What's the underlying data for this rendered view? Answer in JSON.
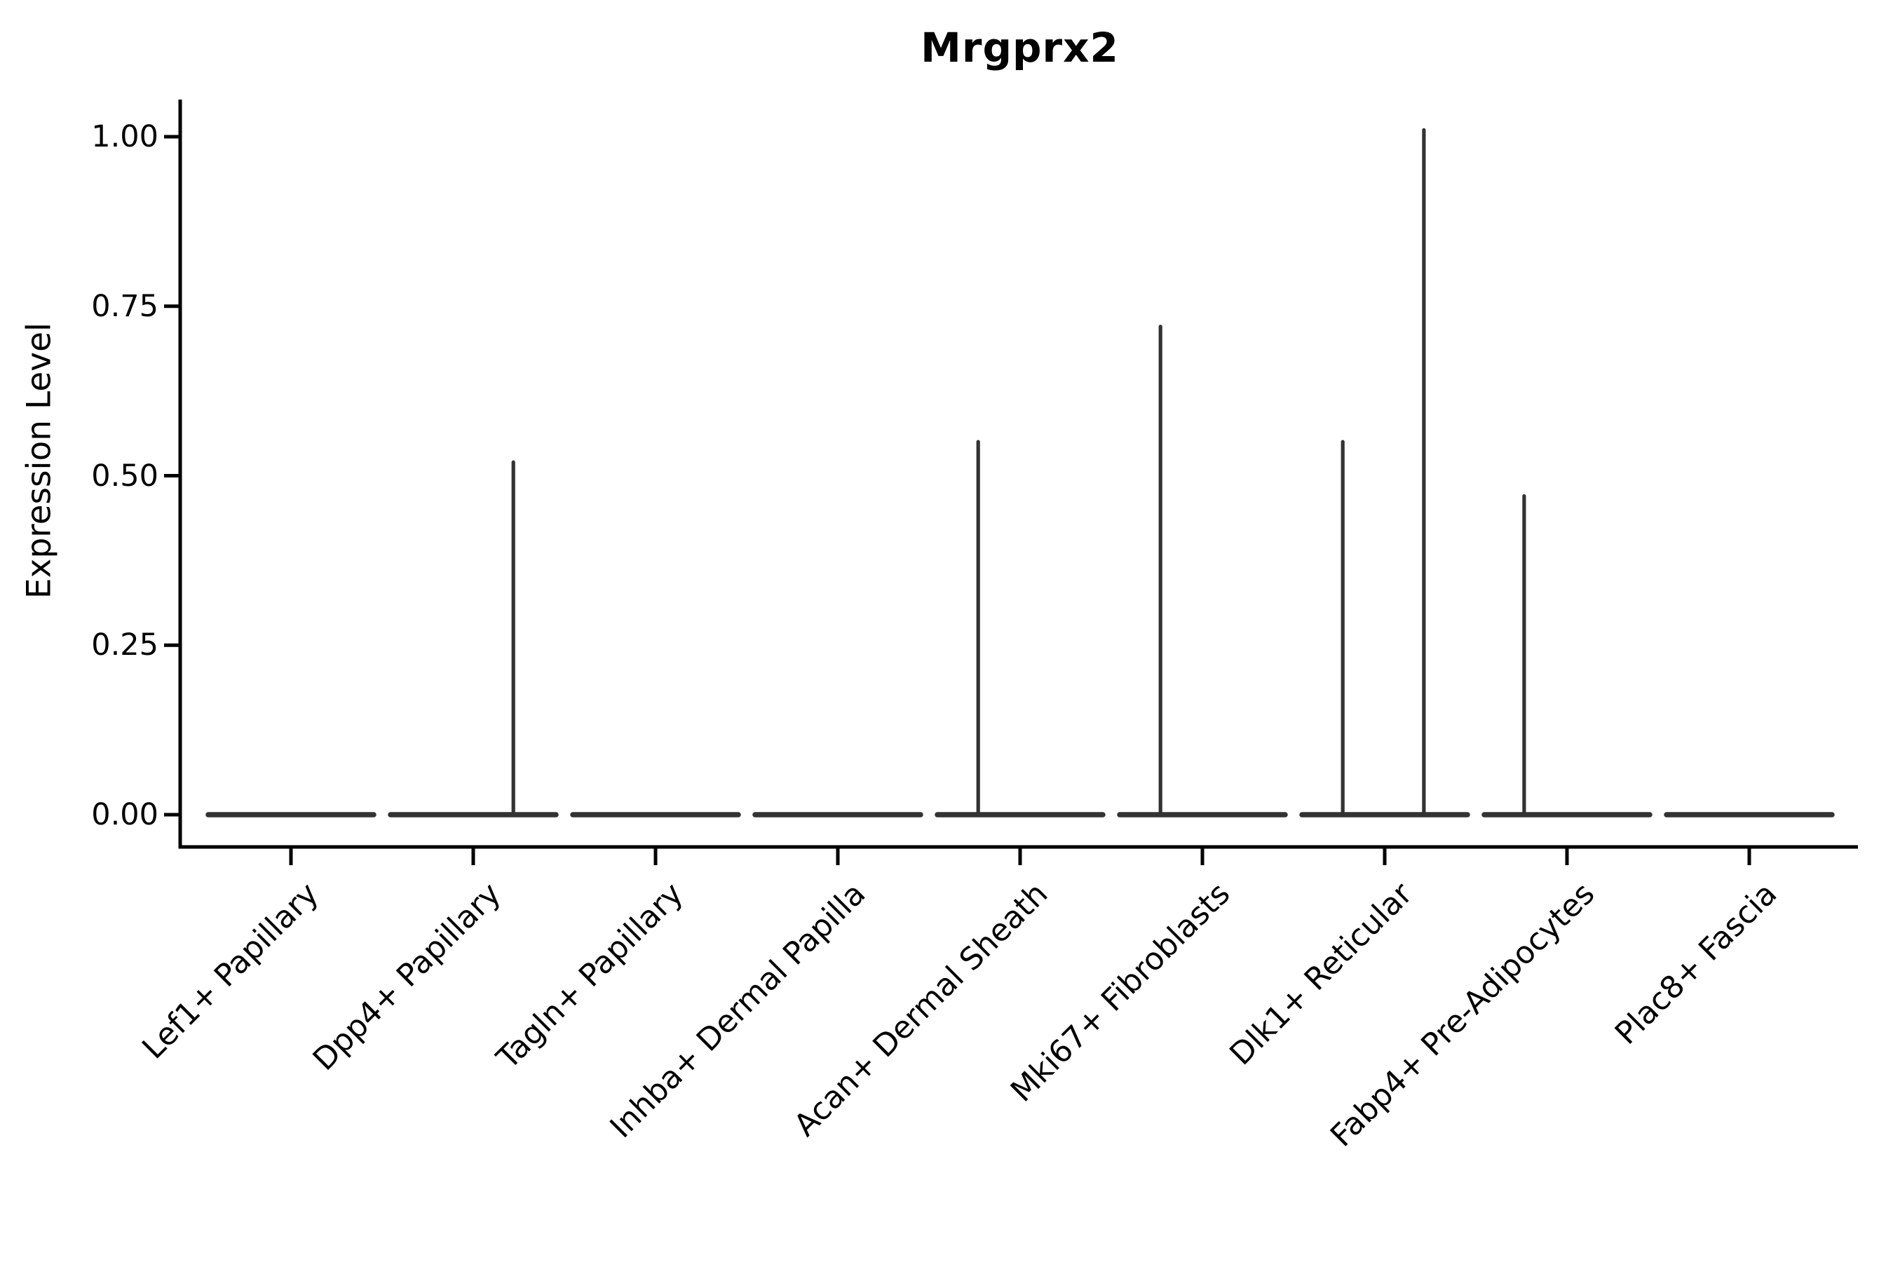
{
  "chart_data": {
    "type": "violin",
    "title": "Mrgprx2",
    "xlabel": "",
    "ylabel": "Expression Level",
    "ylim": [
      -0.048,
      1.055
    ],
    "yticks": [
      0.0,
      0.25,
      0.5,
      0.75,
      1.0
    ],
    "ytick_labels": [
      "0.00",
      "0.25",
      "0.50",
      "0.75",
      "1.00"
    ],
    "x_tick_rotation_deg": 45,
    "grid": false,
    "legend": false,
    "categories": [
      "Lef1+ Papillary",
      "Dpp4+ Papillary",
      "Tagln+ Papillary",
      "Inhba+ Dermal Papilla",
      "Acan+ Dermal Sheath",
      "Mki67+ Fibroblasts",
      "Dlk1+ Reticular",
      "Fabp4+ Pre-Adipocytes",
      "Plac8+ Fascia"
    ],
    "violins": [
      {
        "category": "Lef1+ Papillary",
        "base_value": 0.0,
        "spikes": []
      },
      {
        "category": "Dpp4+ Papillary",
        "base_value": 0.0,
        "spikes": [
          {
            "offset": 0.22,
            "max_value": 0.52
          }
        ]
      },
      {
        "category": "Tagln+ Papillary",
        "base_value": 0.0,
        "spikes": []
      },
      {
        "category": "Inhba+ Dermal Papilla",
        "base_value": 0.0,
        "spikes": []
      },
      {
        "category": "Acan+ Dermal Sheath",
        "base_value": 0.0,
        "spikes": [
          {
            "offset": -0.23,
            "max_value": 0.55
          }
        ]
      },
      {
        "category": "Mki67+ Fibroblasts",
        "base_value": 0.0,
        "spikes": [
          {
            "offset": -0.23,
            "max_value": 0.72
          }
        ]
      },
      {
        "category": "Dlk1+ Reticular",
        "base_value": 0.0,
        "spikes": [
          {
            "offset": -0.23,
            "max_value": 0.55
          },
          {
            "offset": 0.215,
            "max_value": 1.01
          }
        ]
      },
      {
        "category": "Fabp4+ Pre-Adipocytes",
        "base_value": 0.0,
        "spikes": [
          {
            "offset": -0.235,
            "max_value": 0.47
          }
        ]
      },
      {
        "category": "Plac8+ Fascia",
        "base_value": 0.0,
        "spikes": []
      }
    ],
    "colors": {
      "violin_line": "#333333",
      "axis": "#000000",
      "background": "#ffffff",
      "text": "#000000"
    }
  }
}
